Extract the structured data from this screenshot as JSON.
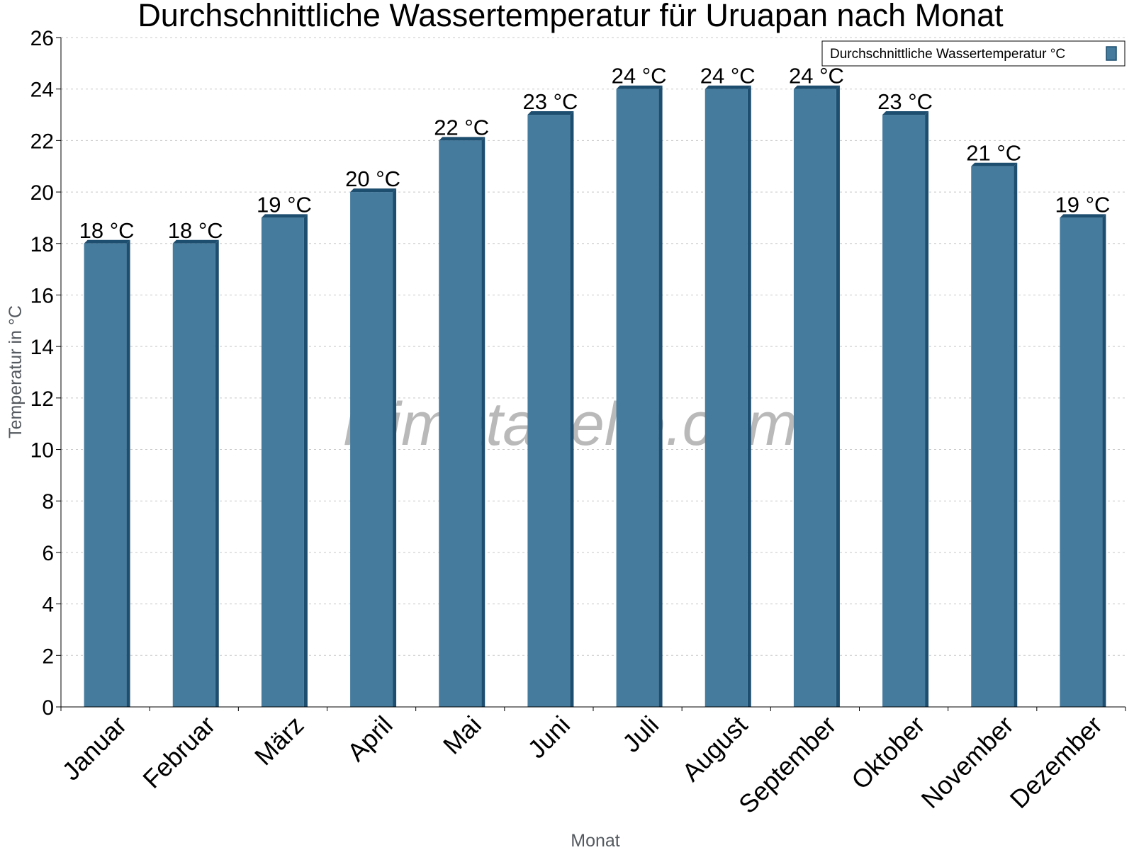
{
  "chart_data": {
    "type": "bar",
    "title": "Durchschnittliche Wassertemperatur für Uruapan nach Monat",
    "xlabel": "Monat",
    "ylabel": "Temperatur in °C",
    "categories": [
      "Januar",
      "Februar",
      "März",
      "April",
      "Mai",
      "Juni",
      "Juli",
      "August",
      "September",
      "Oktober",
      "November",
      "Dezember"
    ],
    "series": [
      {
        "name": "Durchschnittliche Wassertemperatur °C",
        "values": [
          18,
          18,
          19,
          20,
          22,
          23,
          24,
          24,
          24,
          23,
          21,
          19
        ],
        "labels": [
          "18 °C",
          "18 °C",
          "19 °C",
          "20 °C",
          "22 °C",
          "23 °C",
          "24 °C",
          "24 °C",
          "24 °C",
          "23 °C",
          "21 °C",
          "19 °C"
        ],
        "color": "#457b9d",
        "edge_color": "#1d4e6f"
      }
    ],
    "ylim": [
      0,
      26
    ],
    "yticks": [
      0,
      2,
      4,
      6,
      8,
      10,
      12,
      14,
      16,
      18,
      20,
      22,
      24,
      26
    ],
    "grid": true,
    "legend_position": "top-right",
    "watermark": "klimatabelle.com"
  }
}
